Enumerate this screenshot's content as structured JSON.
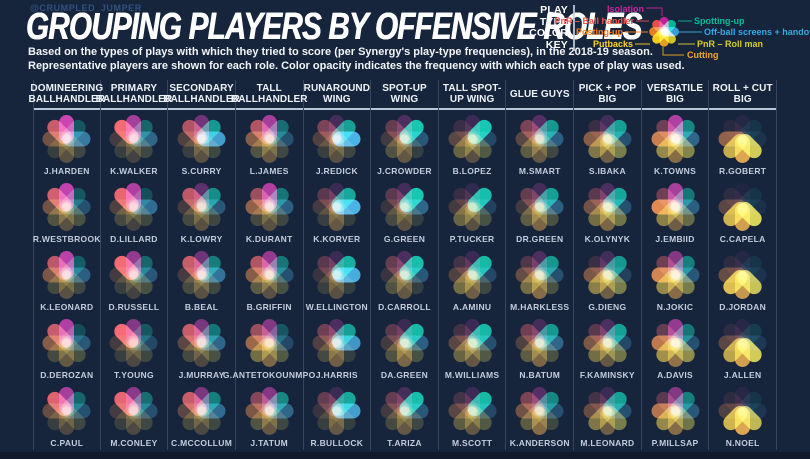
{
  "meta": {
    "handle": "@CRUMPLED_JUMPER"
  },
  "header": {
    "title": "GROUPING PLAYERS BY OFFENSIVE ROLES",
    "subtitle1": "Based on the types of plays with which they tried to score (per Synergy's play-type frequencies), in the 2018-19 season.",
    "subtitle2": "Representative players are shown for each role. Color opacity indicates the frequency with which each type of play was used."
  },
  "key": {
    "title_lines": [
      "PLAY",
      "TYPE",
      "COLOR",
      "KEY"
    ],
    "petal_order_note": "index = petal angle, clockwise from top: 0deg,45deg,90deg,135deg,180deg,225deg,270deg,315deg",
    "play_types": [
      {
        "label": "Isolation",
        "color": "#c6259d"
      },
      {
        "label": "Spotting-up",
        "color": "#00bf9a"
      },
      {
        "label": "Off-ball screens + handoffs",
        "color": "#39a7e0"
      },
      {
        "label": "PnR – Roll man",
        "color": "#d8cd27"
      },
      {
        "label": "Cutting",
        "color": "#f2a81d"
      },
      {
        "label": "Putbacks",
        "color": "#ffd41e"
      },
      {
        "label": "Posting-up",
        "color": "#f58320"
      },
      {
        "label": "PnR – Ball handler",
        "color": "#f3514b"
      }
    ],
    "key_flower_opacities": [
      0.95,
      0.95,
      0.95,
      0.95,
      0.95,
      0.95,
      0.95,
      0.95
    ]
  },
  "chart_data": {
    "type": "table",
    "title": "GROUPING PLAYERS BY OFFENSIVE ROLES",
    "description": "Flower glyphs: 8 petals per player, one per play type; petal opacity encodes play-type frequency (estimated 0-1).",
    "petal_order": [
      "Isolation",
      "Spotting-up",
      "Off-ball screens + handoffs",
      "PnR – Roll man",
      "Cutting",
      "Putbacks",
      "Posting-up",
      "PnR – Ball handler"
    ],
    "columns": [
      {
        "role": "DOMINEERING BALLHANDLER",
        "players": [
          {
            "name": "J.HARDEN",
            "petals": [
              1,
              0.3,
              0.6,
              0.2,
              0.3,
              0.15,
              0.4,
              0.8
            ]
          },
          {
            "name": "R.WESTBROOK",
            "petals": [
              0.95,
              0.3,
              0.3,
              0.25,
              0.3,
              0.25,
              0.4,
              0.85
            ]
          },
          {
            "name": "K.LEONARD",
            "petals": [
              0.9,
              0.35,
              0.4,
              0.2,
              0.3,
              0.2,
              0.45,
              0.75
            ]
          },
          {
            "name": "D.DEROZAN",
            "petals": [
              0.85,
              0.25,
              0.35,
              0.25,
              0.35,
              0.2,
              0.5,
              0.8
            ]
          },
          {
            "name": "C.PAUL",
            "petals": [
              0.8,
              0.4,
              0.3,
              0.2,
              0.25,
              0.15,
              0.35,
              0.9
            ]
          }
        ]
      },
      {
        "role": "PRIMARY BALLHANDLER",
        "players": [
          {
            "name": "K.WALKER",
            "petals": [
              0.8,
              0.4,
              0.45,
              0.2,
              0.2,
              0.15,
              0.2,
              1
            ]
          },
          {
            "name": "D.LILLARD",
            "petals": [
              0.85,
              0.25,
              0.5,
              0.2,
              0.2,
              0.2,
              0.25,
              0.95
            ]
          },
          {
            "name": "D.RUSSELL",
            "petals": [
              0.7,
              0.4,
              0.35,
              0.25,
              0.2,
              0.15,
              0.2,
              1
            ]
          },
          {
            "name": "T.YOUNG",
            "petals": [
              0.6,
              0.3,
              0.25,
              0.2,
              0.25,
              0.15,
              0.2,
              1
            ]
          },
          {
            "name": "M.CONLEY",
            "petals": [
              0.65,
              0.45,
              0.3,
              0.2,
              0.25,
              0.15,
              0.2,
              0.95
            ]
          }
        ]
      },
      {
        "role": "SECONDARY BALLHANDLER",
        "players": [
          {
            "name": "S.CURRY",
            "petals": [
              0.5,
              0.7,
              0.85,
              0.2,
              0.3,
              0.15,
              0.25,
              0.7
            ]
          },
          {
            "name": "K.LOWRY",
            "petals": [
              0.4,
              0.65,
              0.35,
              0.2,
              0.3,
              0.2,
              0.2,
              0.75
            ]
          },
          {
            "name": "B.BEAL",
            "petals": [
              0.5,
              0.55,
              0.55,
              0.2,
              0.3,
              0.2,
              0.2,
              0.8
            ]
          },
          {
            "name": "J.MURRAY",
            "petals": [
              0.55,
              0.5,
              0.45,
              0.25,
              0.25,
              0.2,
              0.3,
              0.8
            ]
          },
          {
            "name": "C.MCCOLLUM",
            "petals": [
              0.55,
              0.55,
              0.5,
              0.2,
              0.25,
              0.2,
              0.3,
              0.8
            ]
          }
        ]
      },
      {
        "role": "TALL BALLHANDLER",
        "players": [
          {
            "name": "L.JAMES",
            "petals": [
              0.8,
              0.45,
              0.3,
              0.2,
              0.35,
              0.25,
              0.5,
              0.7
            ]
          },
          {
            "name": "K.DURANT",
            "petals": [
              0.85,
              0.5,
              0.4,
              0.2,
              0.3,
              0.2,
              0.55,
              0.6
            ]
          },
          {
            "name": "B.GRIFFIN",
            "petals": [
              0.7,
              0.5,
              0.3,
              0.25,
              0.3,
              0.3,
              0.5,
              0.7
            ]
          },
          {
            "name": "G.ANTETOKOUNMPO",
            "petals": [
              0.6,
              0.3,
              0.25,
              0.3,
              0.45,
              0.4,
              0.6,
              0.6
            ]
          },
          {
            "name": "J.TATUM",
            "petals": [
              0.6,
              0.6,
              0.45,
              0.2,
              0.35,
              0.25,
              0.45,
              0.5
            ]
          }
        ]
      },
      {
        "role": "RUNAROUND WING",
        "players": [
          {
            "name": "J.REDICK",
            "petals": [
              0.25,
              0.75,
              1,
              0.2,
              0.3,
              0.15,
              0.25,
              0.45
            ]
          },
          {
            "name": "K.KORVER",
            "petals": [
              0.2,
              0.8,
              1,
              0.15,
              0.35,
              0.15,
              0.2,
              0.3
            ]
          },
          {
            "name": "W.ELLINGTON",
            "petals": [
              0.2,
              0.85,
              0.95,
              0.15,
              0.3,
              0.15,
              0.15,
              0.3
            ]
          },
          {
            "name": "J.HARRIS",
            "petals": [
              0.3,
              0.75,
              0.8,
              0.15,
              0.4,
              0.2,
              0.25,
              0.4
            ]
          },
          {
            "name": "R.BULLOCK",
            "petals": [
              0.2,
              0.8,
              0.85,
              0.15,
              0.35,
              0.15,
              0.15,
              0.35
            ]
          }
        ]
      },
      {
        "role": "SPOT-UP WING",
        "players": [
          {
            "name": "J.CROWDER",
            "petals": [
              0.3,
              1,
              0.35,
              0.15,
              0.35,
              0.25,
              0.2,
              0.35
            ]
          },
          {
            "name": "G.GREEN",
            "petals": [
              0.25,
              1,
              0.45,
              0.15,
              0.3,
              0.2,
              0.15,
              0.3
            ]
          },
          {
            "name": "D.CARROLL",
            "petals": [
              0.3,
              0.95,
              0.35,
              0.15,
              0.35,
              0.25,
              0.15,
              0.35
            ]
          },
          {
            "name": "DA.GREEN",
            "petals": [
              0.2,
              0.9,
              0.4,
              0.25,
              0.45,
              0.25,
              0.2,
              0.3
            ]
          },
          {
            "name": "T.ARIZA",
            "petals": [
              0.25,
              0.95,
              0.35,
              0.2,
              0.35,
              0.2,
              0.2,
              0.35
            ]
          }
        ]
      },
      {
        "role": "TALL SPOT-UP WING",
        "players": [
          {
            "name": "B.LOPEZ",
            "petals": [
              0.2,
              1,
              0.25,
              0.3,
              0.3,
              0.35,
              0.3,
              0.15
            ]
          },
          {
            "name": "P.TUCKER",
            "petals": [
              0.15,
              0.95,
              0.2,
              0.25,
              0.3,
              0.35,
              0.2,
              0.15
            ]
          },
          {
            "name": "A.AMINU",
            "petals": [
              0.2,
              0.9,
              0.25,
              0.2,
              0.4,
              0.4,
              0.25,
              0.2
            ]
          },
          {
            "name": "M.WILLIAMS",
            "petals": [
              0.2,
              0.9,
              0.3,
              0.3,
              0.35,
              0.35,
              0.3,
              0.2
            ]
          },
          {
            "name": "M.SCOTT",
            "petals": [
              0.2,
              0.9,
              0.25,
              0.3,
              0.35,
              0.3,
              0.3,
              0.2
            ]
          }
        ]
      },
      {
        "role": "GLUE GUYS",
        "players": [
          {
            "name": "M.SMART",
            "petals": [
              0.35,
              0.7,
              0.4,
              0.2,
              0.35,
              0.3,
              0.3,
              0.45
            ]
          },
          {
            "name": "DR.GREEN",
            "petals": [
              0.25,
              0.75,
              0.4,
              0.25,
              0.45,
              0.3,
              0.2,
              0.35
            ]
          },
          {
            "name": "M.HARKLESS",
            "petals": [
              0.3,
              0.7,
              0.3,
              0.25,
              0.5,
              0.4,
              0.35,
              0.25
            ]
          },
          {
            "name": "N.BATUM",
            "petals": [
              0.25,
              0.7,
              0.45,
              0.25,
              0.45,
              0.3,
              0.25,
              0.4
            ]
          },
          {
            "name": "K.ANDERSON",
            "petals": [
              0.35,
              0.6,
              0.3,
              0.2,
              0.5,
              0.3,
              0.4,
              0.45
            ]
          }
        ]
      },
      {
        "role": "PICK + POP BIG",
        "players": [
          {
            "name": "S.IBAKA",
            "petals": [
              0.25,
              0.75,
              0.3,
              0.5,
              0.4,
              0.45,
              0.5,
              0.15
            ]
          },
          {
            "name": "K.OLYNYK",
            "petals": [
              0.3,
              0.8,
              0.3,
              0.45,
              0.45,
              0.4,
              0.4,
              0.3
            ]
          },
          {
            "name": "G.DIENG",
            "petals": [
              0.25,
              0.7,
              0.2,
              0.5,
              0.4,
              0.5,
              0.45,
              0.15
            ]
          },
          {
            "name": "F.KAMINSKY",
            "petals": [
              0.3,
              0.75,
              0.25,
              0.45,
              0.35,
              0.4,
              0.45,
              0.3
            ]
          },
          {
            "name": "M.LEONARD",
            "petals": [
              0.2,
              0.75,
              0.3,
              0.5,
              0.4,
              0.45,
              0.35,
              0.2
            ]
          }
        ]
      },
      {
        "role": "VERSATILE BIG",
        "players": [
          {
            "name": "K.TOWNS",
            "petals": [
              0.85,
              0.6,
              0.45,
              0.55,
              0.5,
              0.55,
              0.8,
              0.4
            ]
          },
          {
            "name": "J.EMBIID",
            "petals": [
              0.8,
              0.5,
              0.4,
              0.4,
              0.4,
              0.5,
              0.9,
              0.4
            ]
          },
          {
            "name": "N.JOKIC",
            "petals": [
              0.6,
              0.55,
              0.35,
              0.5,
              0.5,
              0.55,
              0.85,
              0.4
            ]
          },
          {
            "name": "A.DAVIS",
            "petals": [
              0.7,
              0.5,
              0.3,
              0.6,
              0.55,
              0.6,
              0.75,
              0.35
            ]
          },
          {
            "name": "P.MILLSAP",
            "petals": [
              0.6,
              0.55,
              0.35,
              0.45,
              0.5,
              0.55,
              0.7,
              0.3
            ]
          }
        ]
      },
      {
        "role": "ROLL + CUT BIG",
        "players": [
          {
            "name": "R.GOBERT",
            "petals": [
              0.08,
              0.1,
              0.1,
              0.95,
              0.9,
              0.75,
              0.55,
              0.08
            ]
          },
          {
            "name": "C.CAPELA",
            "petals": [
              0.05,
              0.1,
              0.08,
              1,
              0.85,
              0.8,
              0.3,
              0.1
            ]
          },
          {
            "name": "D.JORDAN",
            "petals": [
              0.08,
              0.1,
              0.1,
              0.9,
              0.8,
              0.85,
              0.35,
              0.1
            ]
          },
          {
            "name": "J.ALLEN",
            "petals": [
              0.1,
              0.15,
              0.15,
              0.95,
              0.85,
              0.7,
              0.3,
              0.1
            ]
          },
          {
            "name": "N.NOEL",
            "petals": [
              0.1,
              0.1,
              0.12,
              0.85,
              0.9,
              0.8,
              0.25,
              0.1
            ]
          }
        ]
      }
    ]
  }
}
